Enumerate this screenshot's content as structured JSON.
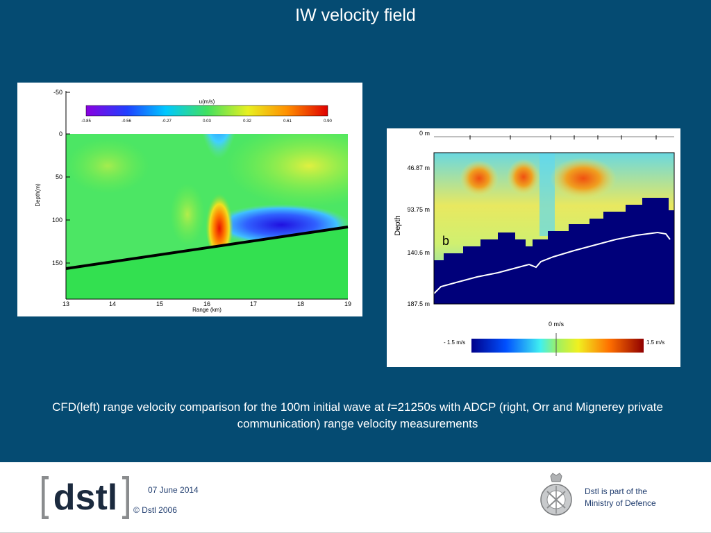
{
  "slide": {
    "title": "IW velocity field",
    "caption_part1": "CFD(left)  range velocity comparison for the 100m initial wave at ",
    "caption_italic": "t",
    "caption_part2": "=21250s with ADCP (right, Orr and Mignerey private communication)  range velocity measurements"
  },
  "cfd_figure": {
    "colorbar_title": "u(m/s)",
    "colorbar_ticks": [
      "-0.85",
      "-0.56",
      "-0.27",
      "0.03",
      "0.32",
      "0.61",
      "0.90"
    ],
    "y_axis_label": "Depth(m)",
    "y_ticks": [
      "-50",
      "0",
      "50",
      "100",
      "150"
    ],
    "x_axis_label": "Range (km)",
    "x_ticks": [
      "13",
      "14",
      "15",
      "16",
      "17",
      "18",
      "19"
    ]
  },
  "adcp_figure": {
    "y_axis_label": "Depth",
    "depth_ticks": [
      "0 m",
      "46.87 m",
      "93.75 m",
      "140.6 m",
      "187.5 m"
    ],
    "panel_letter": "b",
    "colorbar_center": "0 m/s",
    "colorbar_min": "- 1.5 m/s",
    "colorbar_max": "1.5 m/s"
  },
  "footer": {
    "logo_text": "dstl",
    "date": "07 June 2014",
    "copyright": "© Dstl 2006",
    "mod_line1": "Dstl is part of the",
    "mod_line2": "Ministry of Defence"
  },
  "colors": {
    "background": "#054b72",
    "footer_text": "#1f3c6e",
    "logo_grey": "#8a8c8e",
    "logo_dark": "#1b2a3e"
  }
}
